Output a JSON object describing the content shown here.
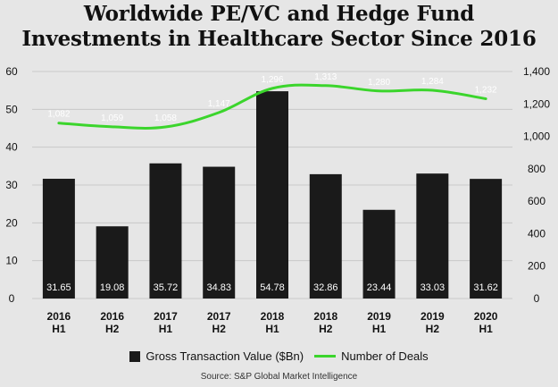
{
  "title_line1": "Worldwide PE/VC and Hedge Fund",
  "title_line2": "Investments in Healthcare Sector Since 2016",
  "source": "Source: S&P Global Market Intelligence",
  "colors": {
    "bar": "#1a1a1a",
    "line": "#3bd52c",
    "background": "#e6e6e6",
    "grid": "#c9c9c9"
  },
  "chart_data": {
    "type": "bar",
    "categories": [
      [
        "2016",
        "H1"
      ],
      [
        "2016",
        "H2"
      ],
      [
        "2017",
        "H1"
      ],
      [
        "2017",
        "H2"
      ],
      [
        "2018",
        "H1"
      ],
      [
        "2018",
        "H2"
      ],
      [
        "2019",
        "H1"
      ],
      [
        "2019",
        "H2"
      ],
      [
        "2020",
        "H1"
      ]
    ],
    "series": [
      {
        "name": "Gross Transaction Value ($Bn)",
        "type": "bar",
        "axis": "left",
        "values": [
          31.65,
          19.08,
          35.72,
          34.83,
          54.78,
          32.86,
          23.44,
          33.03,
          31.62
        ],
        "labels": [
          "31.65",
          "19.08",
          "35.72",
          "34.83",
          "54.78",
          "32.86",
          "23.44",
          "33.03",
          "31.62"
        ]
      },
      {
        "name": "Number of Deals",
        "type": "line",
        "axis": "right",
        "values": [
          1082,
          1059,
          1058,
          1147,
          1296,
          1313,
          1280,
          1284,
          1232
        ],
        "labels": [
          "1,082",
          "1,059",
          "1,058",
          "1,147",
          "1,296",
          "1,313",
          "1,280",
          "1,284",
          "1,232"
        ]
      }
    ],
    "y_left": {
      "ylim": [
        0,
        60
      ],
      "ticks": [
        0,
        10,
        20,
        30,
        40,
        50,
        60
      ],
      "tick_labels": [
        "0",
        "10",
        "20",
        "30",
        "40",
        "50",
        "60"
      ]
    },
    "y_right": {
      "ylim": [
        0,
        1400
      ],
      "ticks": [
        0,
        200,
        400,
        600,
        800,
        1000,
        1200,
        1400
      ],
      "tick_labels": [
        "0",
        "200",
        "400",
        "600",
        "800",
        "1,000",
        "1,200",
        "1,400"
      ]
    },
    "grid": true,
    "legend_position": "bottom"
  }
}
